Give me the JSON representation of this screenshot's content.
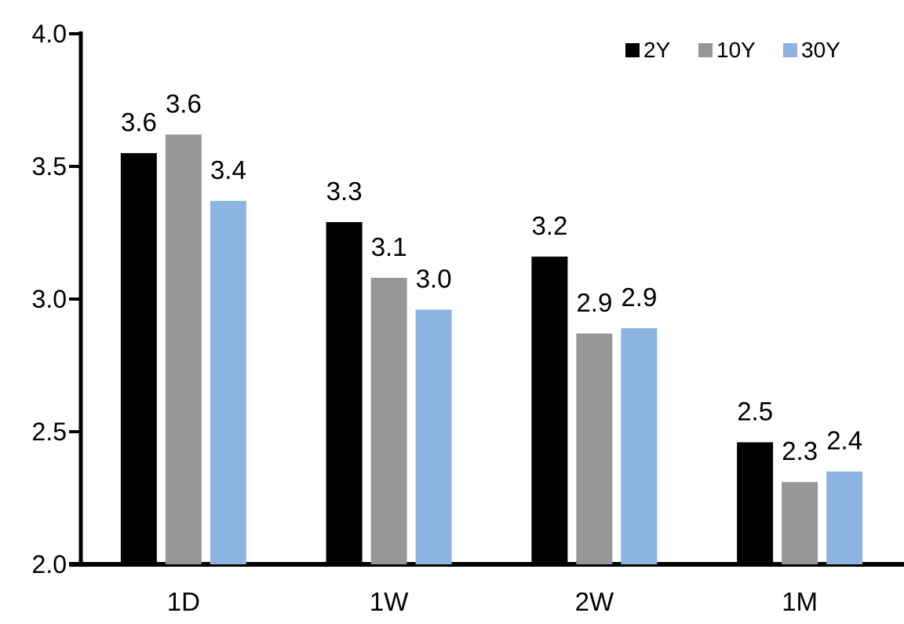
{
  "chart_data": {
    "type": "bar",
    "title": "",
    "xlabel": "",
    "ylabel": "",
    "categories": [
      "1D",
      "1W",
      "2W",
      "1M"
    ],
    "series": [
      {
        "name": "2Y",
        "color": "#000000",
        "values": [
          3.55,
          3.29,
          3.16,
          2.46
        ],
        "labels": [
          "3.6",
          "3.3",
          "3.2",
          "2.5"
        ]
      },
      {
        "name": "10Y",
        "color": "#969696",
        "values": [
          3.62,
          3.08,
          2.87,
          2.31
        ],
        "labels": [
          "3.6",
          "3.1",
          "2.9",
          "2.3"
        ]
      },
      {
        "name": "30Y",
        "color": "#8DB3E2",
        "values": [
          3.37,
          2.96,
          2.89,
          2.35
        ],
        "labels": [
          "3.4",
          "3.0",
          "2.9",
          "2.4"
        ]
      }
    ],
    "ylim": [
      2.0,
      4.0
    ],
    "ytick_step": 0.5,
    "ytick_labels": [
      "2.0",
      "2.5",
      "3.0",
      "3.5",
      "4.0"
    ],
    "grid": false,
    "legend_position": "top-right",
    "axis_color": "#000000",
    "background_color": "#FFFFFF",
    "bar_label_color": "#000000"
  }
}
